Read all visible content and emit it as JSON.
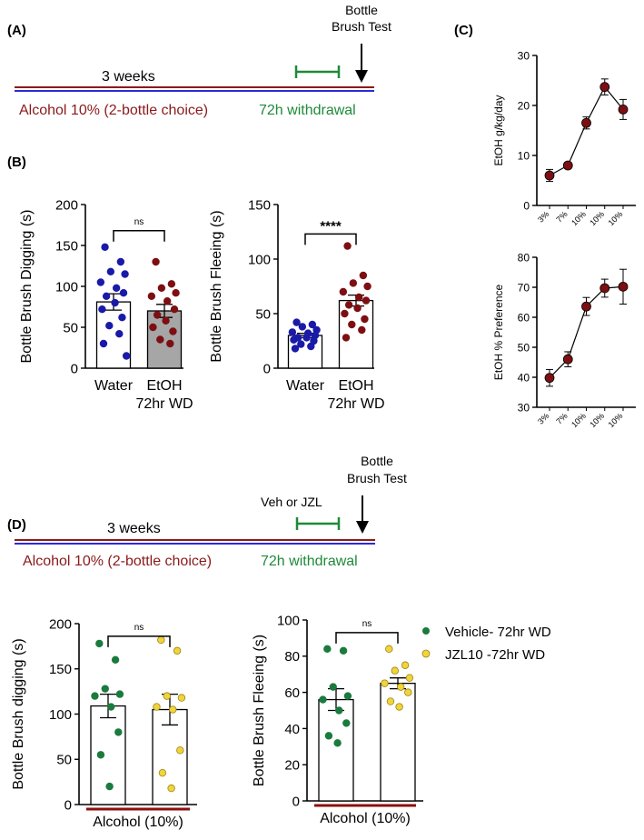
{
  "colors": {
    "water": "#1a1aa8",
    "etoh": "#7d0f12",
    "vehicle": "#1b7a3e",
    "jzl": "#f0d43a",
    "timeline_red": "#8b1a1a",
    "timeline_blue": "#2b2bd9",
    "withdrawal": "#1f8a3a",
    "etoh_bar": "#a6a6a6",
    "alcohol_bar": "#8b0f0f"
  },
  "panels": {
    "a": "(A)",
    "b": "(B)",
    "c": "(C)",
    "d": "(D)"
  },
  "timeline_a": {
    "test_line1": "Bottle",
    "test_line2": "Brush Test",
    "duration": "3 weeks",
    "alcohol_label": "Alcohol 10% (2-bottle choice)",
    "withdrawal_label": "72h withdrawal"
  },
  "timeline_d": {
    "test_line1": "Bottle",
    "test_line2": "Brush Test",
    "treatment": "Veh or JZL",
    "duration": "3 weeks",
    "alcohol_label": "Alcohol 10% (2-bottle choice)",
    "withdrawal_label": "72h withdrawal"
  },
  "chart_data": [
    {
      "id": "b_digging",
      "type": "bar",
      "ylabel": "Bottle Brush Digging (s)",
      "ylim": [
        0,
        200
      ],
      "yticks": [
        0,
        50,
        100,
        150,
        200
      ],
      "categories": [
        "Water",
        "EtOH"
      ],
      "category_sub": [
        "",
        "72hr WD"
      ],
      "series": [
        {
          "name": "Water",
          "mean": 81,
          "sem": 10,
          "points": [
            148,
            130,
            118,
            115,
            105,
            98,
            92,
            88,
            80,
            72,
            62,
            52,
            42,
            30,
            15
          ]
        },
        {
          "name": "EtOH",
          "mean": 70,
          "sem": 8,
          "points": [
            130,
            103,
            98,
            92,
            88,
            82,
            72,
            65,
            58,
            50,
            45,
            35,
            30
          ]
        }
      ],
      "significance": "ns"
    },
    {
      "id": "b_fleeing",
      "type": "bar",
      "ylabel": "Bottle Brush Fleeing (s)",
      "ylim": [
        0,
        150
      ],
      "yticks": [
        0,
        50,
        100,
        150
      ],
      "categories": [
        "Water",
        "EtOH"
      ],
      "category_sub": [
        "",
        "72hr WD"
      ],
      "series": [
        {
          "name": "Water",
          "mean": 30,
          "sem": 2,
          "points": [
            42,
            40,
            38,
            35,
            33,
            32,
            30,
            28,
            28,
            26,
            25,
            22,
            20,
            18
          ]
        },
        {
          "name": "EtOH",
          "mean": 62,
          "sem": 5,
          "points": [
            112,
            85,
            78,
            75,
            70,
            65,
            62,
            58,
            55,
            50,
            45,
            40,
            35,
            28
          ]
        }
      ],
      "significance": "****"
    },
    {
      "id": "c_consumption",
      "type": "line",
      "ylabel": "EtOH g/kg/day",
      "ylim": [
        0,
        30
      ],
      "yticks": [
        0,
        10,
        20,
        30
      ],
      "categories": [
        "3%",
        "7%",
        "10%",
        "10%",
        "10%"
      ],
      "values": [
        6,
        8,
        16.5,
        23.7,
        19.2
      ],
      "errors": [
        1.2,
        0.6,
        1.2,
        1.6,
        2
      ]
    },
    {
      "id": "c_preference",
      "type": "line",
      "ylabel": "EtOH % Preference",
      "ylim": [
        30,
        80
      ],
      "yticks": [
        30,
        40,
        50,
        60,
        70,
        80
      ],
      "categories": [
        "3%",
        "7%",
        "10%",
        "10%",
        "10%"
      ],
      "values": [
        39.8,
        46,
        63.6,
        69.7,
        70.2
      ],
      "errors": [
        2.8,
        2.5,
        3,
        3,
        5.8
      ]
    },
    {
      "id": "d_digging",
      "type": "bar",
      "ylabel": "Bottle Brush digging (s)",
      "ylim": [
        0,
        200
      ],
      "yticks": [
        0,
        50,
        100,
        150,
        200
      ],
      "xlabel": "Alcohol (10%)",
      "series": [
        {
          "name": "Vehicle- 72hr WD",
          "mean": 109,
          "sem": 13,
          "points": [
            178,
            160,
            128,
            122,
            120,
            108,
            80,
            55,
            20
          ]
        },
        {
          "name": "JZL10 -72hr WD",
          "mean": 105,
          "sem": 17,
          "points": [
            182,
            170,
            120,
            118,
            108,
            105,
            60,
            35,
            18
          ]
        }
      ],
      "significance": "ns"
    },
    {
      "id": "d_fleeing",
      "type": "bar",
      "ylabel": "Bottle Brush Fleeing (s)",
      "ylim": [
        0,
        100
      ],
      "yticks": [
        0,
        20,
        40,
        60,
        80,
        100
      ],
      "xlabel": "Alcohol (10%)",
      "series": [
        {
          "name": "Vehicle- 72hr WD",
          "mean": 56,
          "sem": 6,
          "points": [
            84,
            83,
            63,
            58,
            56,
            50,
            43,
            36,
            32
          ]
        },
        {
          "name": "JZL10 -72hr WD",
          "mean": 65,
          "sem": 3,
          "points": [
            84,
            75,
            72,
            68,
            65,
            63,
            60,
            55,
            52
          ]
        }
      ],
      "significance": "ns"
    }
  ],
  "legend": [
    {
      "label": "Vehicle- 72hr WD"
    },
    {
      "label": "JZL10 -72hr WD"
    }
  ]
}
